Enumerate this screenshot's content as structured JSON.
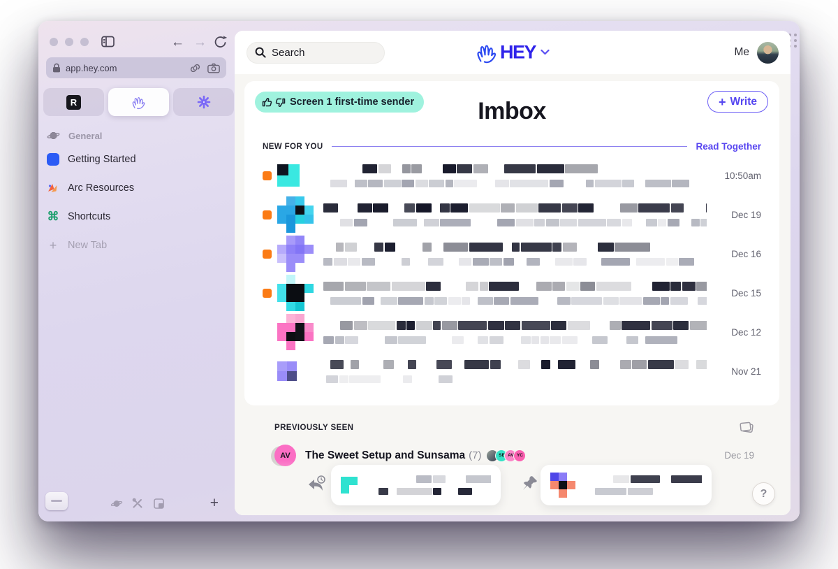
{
  "browser": {
    "url": "app.hey.com",
    "r_tab_letter": "R",
    "items": [
      {
        "label": "General"
      },
      {
        "label": "Getting Started"
      },
      {
        "label": "Arc Resources"
      },
      {
        "label": "Shortcuts"
      },
      {
        "label": "New Tab"
      }
    ],
    "cmd_glyph": "⌘",
    "plus_glyph": "+"
  },
  "header": {
    "search_placeholder": "Search",
    "logo_text": "HEY",
    "me_label": "Me"
  },
  "imbox": {
    "badge_label": "Screen 1 first-time sender",
    "title": "Imbox",
    "write_plus": "+",
    "write_label": "Write",
    "new_for_you_label": "NEW FOR YOU",
    "read_together_label": "Read Together",
    "rows": [
      {
        "date": "10:50am",
        "unread": true,
        "cell": 16,
        "grid": [
          [
            "#0e1420",
            "#3ae8e1"
          ],
          [
            "#3ae8e1",
            "#3ae8e1"
          ]
        ],
        "lines": [
          {
            "seed": 3,
            "indent": 56,
            "max": 300,
            "dark": true,
            "gapP": 0.34
          },
          {
            "seed": 4,
            "indent": 10,
            "max": 520,
            "dark": false,
            "gapP": 0.34
          }
        ]
      },
      {
        "date": "Dec 19",
        "unread": true,
        "cell": 13,
        "grid": [
          [
            "",
            "#45b1e8",
            "#37c9ec",
            ""
          ],
          [
            "#2aa7e5",
            "#2aa7e5",
            "#0d1016",
            "#44d4ee"
          ],
          [
            "#2aa7e5",
            "#1b97dc",
            "#27d0e0",
            "#35c3ea"
          ],
          [
            "",
            "#1b97dc",
            "",
            ""
          ]
        ],
        "lines": [
          {
            "seed": 5,
            "indent": 0,
            "max": 600,
            "dark": true,
            "gapP": 0.28
          },
          {
            "seed": 6,
            "indent": 24,
            "max": 560,
            "dark": false,
            "gapP": 0.3
          }
        ]
      },
      {
        "date": "Dec 16",
        "unread": true,
        "cell": 13,
        "grid": [
          [
            "",
            "#a89bfa",
            "#9285f8",
            ""
          ],
          [
            "#b6abfb",
            "#8f81f8",
            "#8375f6",
            "#9b8df9"
          ],
          [
            "#c9c0fc",
            "#9b8df9",
            "#9b8df9",
            ""
          ],
          [
            "",
            "#9b8df9",
            "",
            ""
          ]
        ],
        "lines": [
          {
            "seed": 7,
            "indent": 18,
            "max": 400,
            "dark": true,
            "gapP": 0.3
          },
          {
            "seed": 8,
            "indent": 0,
            "max": 600,
            "dark": false,
            "gapP": 0.3
          }
        ]
      },
      {
        "date": "Dec 15",
        "unread": true,
        "cell": 13,
        "grid": [
          [
            "",
            "#c2f6f9",
            "",
            ""
          ],
          [
            "#43e1ea",
            "#0b0d12",
            "#0b0d12",
            "#2ed7e1"
          ],
          [
            "#43e1ea",
            "#0b0d12",
            "#0b0d12",
            ""
          ],
          [
            "",
            "#32dbe5",
            "#15c6d2",
            ""
          ]
        ],
        "lines": [
          {
            "seed": 9,
            "indent": 0,
            "max": 580,
            "dark": true,
            "gapP": 0.3
          },
          {
            "seed": 10,
            "indent": 10,
            "max": 590,
            "dark": false,
            "gapP": 0.28
          }
        ]
      },
      {
        "date": "Dec 12",
        "unread": false,
        "cell": 13,
        "grid": [
          [
            "",
            "#fcb3d7",
            "#f9a6d1",
            ""
          ],
          [
            "#fb73c3",
            "#fb73c3",
            "#101218",
            "#f98aca"
          ],
          [
            "#fb73c3",
            "#0c0e13",
            "#101218",
            "#fb73c3"
          ],
          [
            "",
            "#fb73c3",
            "",
            ""
          ]
        ],
        "lines": [
          {
            "seed": 11,
            "indent": 24,
            "max": 620,
            "dark": true,
            "gapP": 0.26
          },
          {
            "seed": 12,
            "indent": 0,
            "max": 470,
            "dark": false,
            "gapP": 0.32
          }
        ]
      },
      {
        "date": "Nov 21",
        "unread": false,
        "cell": 14,
        "grid": [
          [
            "#a89dfa",
            "#998cf8"
          ],
          [
            "#998cf8",
            "#4d4d88"
          ]
        ],
        "lines": [
          {
            "seed": 13,
            "indent": 10,
            "max": 600,
            "dark": true,
            "gapP": 0.62
          },
          {
            "seed": 14,
            "indent": 4,
            "max": 170,
            "dark": false,
            "gapP": 0.45
          }
        ]
      }
    ],
    "previously_seen_label": "PREVIOUSLY SEEN",
    "seen_row": {
      "avatar_text": "AV",
      "title": "The Sweet Setup and Sunsama",
      "count": "(7)",
      "minis": [
        "SE",
        "AV",
        "YC"
      ],
      "date": "Dec 19"
    }
  },
  "trays": {
    "reply_later": {
      "cell": 12,
      "grid": [
        [
          "#2fe2d0",
          "#2fe2d0"
        ],
        [
          "#2fe2d0",
          ""
        ]
      ],
      "lines": [
        {
          "seed": 71,
          "indent": 54,
          "max": 120,
          "dark": false,
          "gapP": 0.3
        },
        {
          "seed": 72,
          "indent": 0,
          "max": 150,
          "dark": true,
          "gapP": 0.3
        }
      ]
    },
    "set_aside": {
      "cell": 12,
      "grid": [
        [
          "#4f46e8",
          "#8b7cf7",
          ""
        ],
        [
          "#f5886e",
          "#0e1016",
          "#f5886e"
        ],
        [
          "",
          "#f5886e",
          ""
        ]
      ],
      "lines": [
        {
          "seed": 81,
          "indent": 36,
          "max": 180,
          "dark": true,
          "gapP": 0.3
        },
        {
          "seed": 82,
          "indent": 10,
          "max": 110,
          "dark": false,
          "gapP": 0.4
        }
      ]
    }
  },
  "footer": {
    "help_label": "?"
  },
  "colors": {
    "accent_purple": "#5546f0",
    "hey_blue": "#2f23ea",
    "badge_mint": "#9ff2de",
    "unread_orange": "#fb7b15",
    "pink_avatar": "#fb6ec4"
  }
}
